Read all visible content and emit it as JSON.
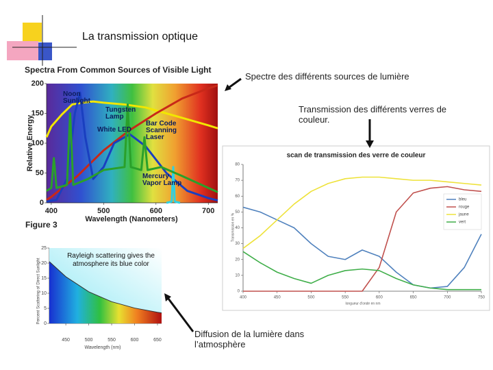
{
  "title": "La transmission optique",
  "annotations": [
    "Spectre des différents sources de lumière",
    "Transmission des différents verres de couleur.",
    "Diffusion de la lumière dans l’atmosphère"
  ],
  "chart_data": [
    {
      "type": "line",
      "title": "Spectra From Common Sources of Visible Light",
      "x_label": "Wavelength (Nanometers)",
      "y_label": "Relative Energy",
      "caption": "Figure 3",
      "xlim": [
        391,
        718
      ],
      "xticks": [
        400,
        500,
        600,
        700
      ],
      "ylim": [
        0,
        200
      ],
      "yticks": [
        0,
        50,
        100,
        150,
        200
      ],
      "series": [
        {
          "name": "Noon Sunlight",
          "color": "#f2e600",
          "x": [
            391,
            400,
            420,
            440,
            460,
            480,
            500,
            540,
            580,
            620,
            660,
            700,
            718
          ],
          "values": [
            110,
            128,
            148,
            165,
            168,
            170,
            168,
            165,
            160,
            150,
            140,
            130,
            125
          ]
        },
        {
          "name": "Tungsten Lamp",
          "color": "#c82818",
          "x": [
            391,
            400,
            450,
            500,
            550,
            600,
            650,
            700,
            718
          ],
          "values": [
            5,
            10,
            45,
            88,
            122,
            150,
            175,
            192,
            197
          ]
        },
        {
          "name": "White LED",
          "color": "#1a3fc0",
          "x": [
            391,
            410,
            430,
            445,
            455,
            465,
            480,
            500,
            520,
            550,
            580,
            620,
            660,
            700,
            718
          ],
          "values": [
            2,
            5,
            40,
            150,
            185,
            110,
            40,
            60,
            100,
            115,
            95,
            50,
            20,
            8,
            4
          ]
        },
        {
          "name": "Bar Code Scanning Laser",
          "color": "#30d0e0",
          "x": [
            620,
            630,
            633,
            636,
            646
          ],
          "values": [
            0,
            2,
            60,
            2,
            0
          ]
        },
        {
          "name": "Mercury Vapor Lamp",
          "color": "#2aa02a",
          "x": [
            391,
            400,
            405,
            410,
            430,
            436,
            442,
            470,
            500,
            540,
            546,
            552,
            572,
            578,
            584,
            610,
            650,
            700,
            718
          ],
          "values": [
            20,
            25,
            75,
            25,
            30,
            150,
            30,
            40,
            55,
            60,
            165,
            60,
            55,
            110,
            55,
            60,
            45,
            25,
            18
          ]
        }
      ]
    },
    {
      "type": "line",
      "title": "scan de transmission des verre de couleur",
      "x_label": "longueur d'onde en nm",
      "y_label": "Transmission en %",
      "xlim": [
        400,
        750
      ],
      "xticks": [
        400,
        450,
        500,
        550,
        600,
        650,
        700,
        750
      ],
      "ylim": [
        0,
        80
      ],
      "yticks": [
        0,
        10,
        20,
        30,
        40,
        50,
        60,
        70,
        80
      ],
      "x": [
        400,
        425,
        450,
        475,
        500,
        525,
        550,
        575,
        600,
        625,
        650,
        675,
        700,
        725,
        750
      ],
      "series": [
        {
          "name": "bleu",
          "color": "#4f81bd",
          "values": [
            53,
            50,
            45,
            40,
            30,
            22,
            20,
            26,
            22,
            12,
            4,
            2,
            3,
            15,
            36
          ]
        },
        {
          "name": "rouge",
          "color": "#c0504d",
          "values": [
            0,
            0,
            0,
            0,
            0,
            0,
            0,
            0,
            15,
            50,
            62,
            65,
            66,
            64,
            63
          ]
        },
        {
          "name": "jaune",
          "color": "#eee23a",
          "values": [
            27,
            35,
            45,
            55,
            63,
            68,
            71,
            72,
            72,
            71,
            70,
            70,
            69,
            68,
            67
          ]
        },
        {
          "name": "vert",
          "color": "#3fae49",
          "values": [
            25,
            18,
            12,
            8,
            5,
            10,
            13,
            14,
            13,
            8,
            4,
            2,
            1,
            1,
            1
          ]
        }
      ]
    },
    {
      "type": "area",
      "title": "Rayleigh scattering gives the atmosphere its blue color",
      "x_label": "Wavelength (nm)",
      "y_label": "Percent Scattering of Direct Sunlight",
      "xlim": [
        414,
        659
      ],
      "xticks": [
        450,
        500,
        550,
        600,
        650
      ],
      "ylim": [
        0,
        25
      ],
      "yticks": [
        0,
        5,
        10,
        15,
        20,
        25
      ],
      "x": [
        414,
        450,
        500,
        550,
        600,
        650,
        659
      ],
      "values": [
        20.5,
        15.5,
        10.5,
        7.2,
        5.1,
        3.7,
        3.5
      ],
      "color": "#333333"
    }
  ]
}
